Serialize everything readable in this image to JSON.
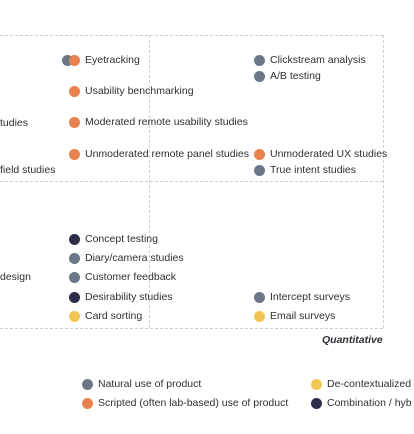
{
  "diagram": {
    "axis_label": "Quantitative",
    "items": [
      {
        "label": "Eyetracking",
        "dots": [
          "gray",
          "orange"
        ]
      },
      {
        "label": "Usability benchmarking",
        "dots": [
          "orange"
        ]
      },
      {
        "label": "Moderated remote usability studies",
        "dots": [
          "orange"
        ]
      },
      {
        "label": "Unmoderated remote panel studies",
        "dots": [
          "orange"
        ]
      },
      {
        "label": "Clickstream analysis",
        "dots": [
          "gray"
        ]
      },
      {
        "label": "A/B testing",
        "dots": [
          "gray"
        ]
      },
      {
        "label": "Unmoderated UX studies",
        "dots": [
          "orange"
        ]
      },
      {
        "label": "True intent studies",
        "dots": [
          "gray"
        ]
      },
      {
        "label": "Concept testing",
        "dots": [
          "dark"
        ]
      },
      {
        "label": "Diary/camera studies",
        "dots": [
          "gray"
        ]
      },
      {
        "label": "Customer feedback",
        "dots": [
          "gray"
        ]
      },
      {
        "label": "Desirability studies",
        "dots": [
          "dark"
        ]
      },
      {
        "label": "Card sorting",
        "dots": [
          "yellow"
        ]
      },
      {
        "label": "Intercept surveys",
        "dots": [
          "gray"
        ]
      },
      {
        "label": "Email surveys",
        "dots": [
          "yellow"
        ]
      }
    ],
    "cut_off_labels": [
      "tudies",
      "field studies",
      "design"
    ]
  },
  "legend": [
    {
      "label": "Natural use of product",
      "dot": "gray"
    },
    {
      "label": "Scripted (often lab-based) use of product",
      "dot": "orange"
    },
    {
      "label": "De-contextualized",
      "dot": "yellow"
    },
    {
      "label": "Combination / hyb",
      "dot": "dark"
    }
  ],
  "colors": {
    "gray": "#6c7689",
    "orange": "#e8834d",
    "dark": "#2d2d4a",
    "yellow": "#f2c655",
    "grid": "#cfd0d4"
  }
}
